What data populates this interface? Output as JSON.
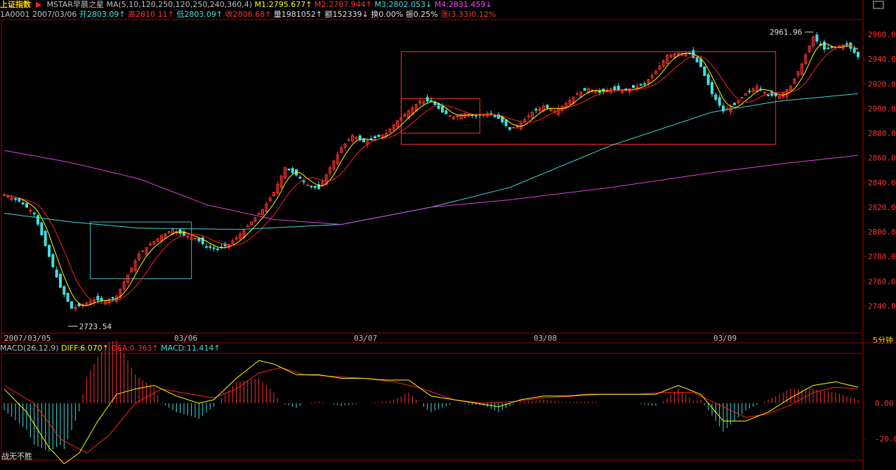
{
  "header": {
    "index_name": "上证指数",
    "template": "MSTAR早晨之星",
    "ma_params": "MA(5,10,120,250,120,250,240,360,4)",
    "m1": "M1:2795.677↑",
    "m2": "M2:2787.944↑",
    "m3": "M3:2802.053↓",
    "m4": "M4:2831.459↓"
  },
  "quote": {
    "code_date": "1A0001 2007/03/06",
    "open": "开2803.09↑",
    "high": "高2810.11↑",
    "low": "低2803.09↑",
    "close": "收2806.68↑",
    "volume": "量1981052↑",
    "amount": "额152339↓",
    "turnover": "换0.00%",
    "amplitude": "振0.25%",
    "change": "涨(3.33)0.12%"
  },
  "macd_header": {
    "params": "MACD(26,12,9)",
    "diff": "DIFF:6.070↑",
    "dea": "DEA:0.363↑",
    "macd": "MACD:11.414↑"
  },
  "period_label": "5分钟",
  "bottom_label": "战无不胜",
  "colors": {
    "background": "#000000",
    "frame": "#a00000",
    "up_candle": "#ff3030",
    "down_candle": "#40e0e0",
    "ma_yellow": "#ffff00",
    "ma_red": "#ff2020",
    "ma_cyan": "#40d8d8",
    "ma_magenta": "#e040e0"
  },
  "chart_data": {
    "type": "candlestick",
    "x_labels": [
      "2007/03/05",
      "03/06",
      "03/07",
      "03/08",
      "03/09"
    ],
    "y_ticks": [
      "2960.00",
      "2940.00",
      "2920.00",
      "2900.00",
      "2880.00",
      "2860.00",
      "2840.00",
      "2820.00",
      "2800.00",
      "2780.00",
      "2760.00",
      "2740.00"
    ],
    "ylim": [
      2718,
      2972
    ],
    "annotations": [
      {
        "text": "2961.96",
        "value": 2961.96
      },
      {
        "text": "2723.54",
        "value": 2723.54
      }
    ],
    "series_close_anchors": [
      [
        0,
        2830
      ],
      [
        4,
        2825
      ],
      [
        8,
        2815
      ],
      [
        12,
        2780
      ],
      [
        15,
        2755
      ],
      [
        18,
        2738
      ],
      [
        21,
        2741
      ],
      [
        24,
        2745
      ],
      [
        27,
        2744
      ],
      [
        30,
        2748
      ],
      [
        33,
        2765
      ],
      [
        36,
        2782
      ],
      [
        39,
        2790
      ],
      [
        42,
        2797
      ],
      [
        45,
        2802
      ],
      [
        48,
        2797
      ],
      [
        51,
        2795
      ],
      [
        54,
        2788
      ],
      [
        57,
        2786
      ],
      [
        60,
        2790
      ],
      [
        63,
        2798
      ],
      [
        66,
        2808
      ],
      [
        69,
        2818
      ],
      [
        72,
        2832
      ],
      [
        75,
        2852
      ],
      [
        78,
        2846
      ],
      [
        81,
        2838
      ],
      [
        84,
        2835
      ],
      [
        87,
        2852
      ],
      [
        90,
        2868
      ],
      [
        93,
        2878
      ],
      [
        96,
        2873
      ],
      [
        99,
        2876
      ],
      [
        102,
        2880
      ],
      [
        105,
        2890
      ],
      [
        108,
        2898
      ],
      [
        111,
        2906
      ],
      [
        114,
        2906
      ],
      [
        117,
        2897
      ],
      [
        120,
        2893
      ],
      [
        123,
        2896
      ],
      [
        126,
        2894
      ],
      [
        129,
        2896
      ],
      [
        132,
        2892
      ],
      [
        135,
        2883
      ],
      [
        138,
        2888
      ],
      [
        141,
        2897
      ],
      [
        144,
        2902
      ],
      [
        147,
        2898
      ],
      [
        150,
        2904
      ],
      [
        153,
        2912
      ],
      [
        156,
        2916
      ],
      [
        159,
        2913
      ],
      [
        162,
        2916
      ],
      [
        165,
        2914
      ],
      [
        168,
        2917
      ],
      [
        171,
        2920
      ],
      [
        174,
        2930
      ],
      [
        177,
        2943
      ],
      [
        180,
        2945
      ],
      [
        183,
        2945
      ],
      [
        186,
        2934
      ],
      [
        189,
        2912
      ],
      [
        192,
        2898
      ],
      [
        195,
        2903
      ],
      [
        198,
        2912
      ],
      [
        201,
        2918
      ],
      [
        204,
        2911
      ],
      [
        207,
        2910
      ],
      [
        210,
        2918
      ],
      [
        213,
        2936
      ],
      [
        216,
        2958
      ],
      [
        219,
        2948
      ],
      [
        222,
        2950
      ],
      [
        225,
        2952
      ],
      [
        228,
        2942
      ]
    ],
    "ma_cyan_anchors": [
      [
        0,
        2815
      ],
      [
        18,
        2808
      ],
      [
        36,
        2803
      ],
      [
        63,
        2802
      ],
      [
        90,
        2806
      ],
      [
        114,
        2820
      ],
      [
        135,
        2836
      ],
      [
        162,
        2870
      ],
      [
        189,
        2897
      ],
      [
        207,
        2906
      ],
      [
        228,
        2912
      ]
    ],
    "ma_magenta_anchors": [
      [
        0,
        2866
      ],
      [
        18,
        2856
      ],
      [
        36,
        2843
      ],
      [
        54,
        2822
      ],
      [
        72,
        2810
      ],
      [
        90,
        2806
      ],
      [
        114,
        2820
      ],
      [
        135,
        2826
      ],
      [
        162,
        2836
      ],
      [
        189,
        2848
      ],
      [
        207,
        2855
      ],
      [
        228,
        2862
      ]
    ],
    "boxes": [
      {
        "start": 23,
        "end": 50,
        "top": 2808,
        "bottom": 2762,
        "color": "#40c0c0"
      },
      {
        "start": 106,
        "end": 127,
        "top": 2908,
        "bottom": 2880,
        "color": "#ff3030"
      },
      {
        "start": 106,
        "end": 206,
        "top": 2946,
        "bottom": 2871,
        "color": "#ff3030"
      }
    ],
    "macd": {
      "ylim": [
        -32,
        28
      ],
      "y_ticks": [
        "0.00",
        "-20.00"
      ],
      "diff_anchors": [
        [
          0,
          8
        ],
        [
          6,
          -5
        ],
        [
          12,
          -25
        ],
        [
          16,
          -34
        ],
        [
          20,
          -28
        ],
        [
          25,
          -10
        ],
        [
          30,
          5
        ],
        [
          35,
          8
        ],
        [
          40,
          10
        ],
        [
          46,
          4
        ],
        [
          52,
          0
        ],
        [
          56,
          2
        ],
        [
          62,
          14
        ],
        [
          68,
          24
        ],
        [
          72,
          22
        ],
        [
          78,
          16
        ],
        [
          84,
          16
        ],
        [
          90,
          14
        ],
        [
          96,
          14
        ],
        [
          102,
          13
        ],
        [
          108,
          13
        ],
        [
          114,
          4
        ],
        [
          120,
          2
        ],
        [
          126,
          0
        ],
        [
          132,
          -2
        ],
        [
          138,
          2
        ],
        [
          144,
          4
        ],
        [
          150,
          4
        ],
        [
          156,
          5
        ],
        [
          162,
          5
        ],
        [
          168,
          5
        ],
        [
          174,
          5
        ],
        [
          180,
          10
        ],
        [
          186,
          5
        ],
        [
          192,
          -10
        ],
        [
          198,
          -10
        ],
        [
          204,
          -5
        ],
        [
          210,
          3
        ],
        [
          216,
          10
        ],
        [
          222,
          12
        ],
        [
          228,
          9
        ]
      ],
      "dea_anchors": [
        [
          0,
          10
        ],
        [
          8,
          0
        ],
        [
          15,
          -20
        ],
        [
          22,
          -28
        ],
        [
          28,
          -18
        ],
        [
          35,
          0
        ],
        [
          42,
          8
        ],
        [
          50,
          5
        ],
        [
          56,
          3
        ],
        [
          62,
          8
        ],
        [
          68,
          17
        ],
        [
          74,
          20
        ],
        [
          80,
          16
        ],
        [
          88,
          15
        ],
        [
          96,
          14
        ],
        [
          104,
          12
        ],
        [
          112,
          8
        ],
        [
          120,
          2
        ],
        [
          128,
          0
        ],
        [
          136,
          1
        ],
        [
          144,
          3
        ],
        [
          152,
          4
        ],
        [
          160,
          5
        ],
        [
          168,
          5
        ],
        [
          176,
          6
        ],
        [
          184,
          6
        ],
        [
          192,
          -2
        ],
        [
          198,
          -8
        ],
        [
          204,
          -6
        ],
        [
          210,
          -1
        ],
        [
          216,
          6
        ],
        [
          222,
          9
        ],
        [
          228,
          8
        ]
      ]
    }
  }
}
